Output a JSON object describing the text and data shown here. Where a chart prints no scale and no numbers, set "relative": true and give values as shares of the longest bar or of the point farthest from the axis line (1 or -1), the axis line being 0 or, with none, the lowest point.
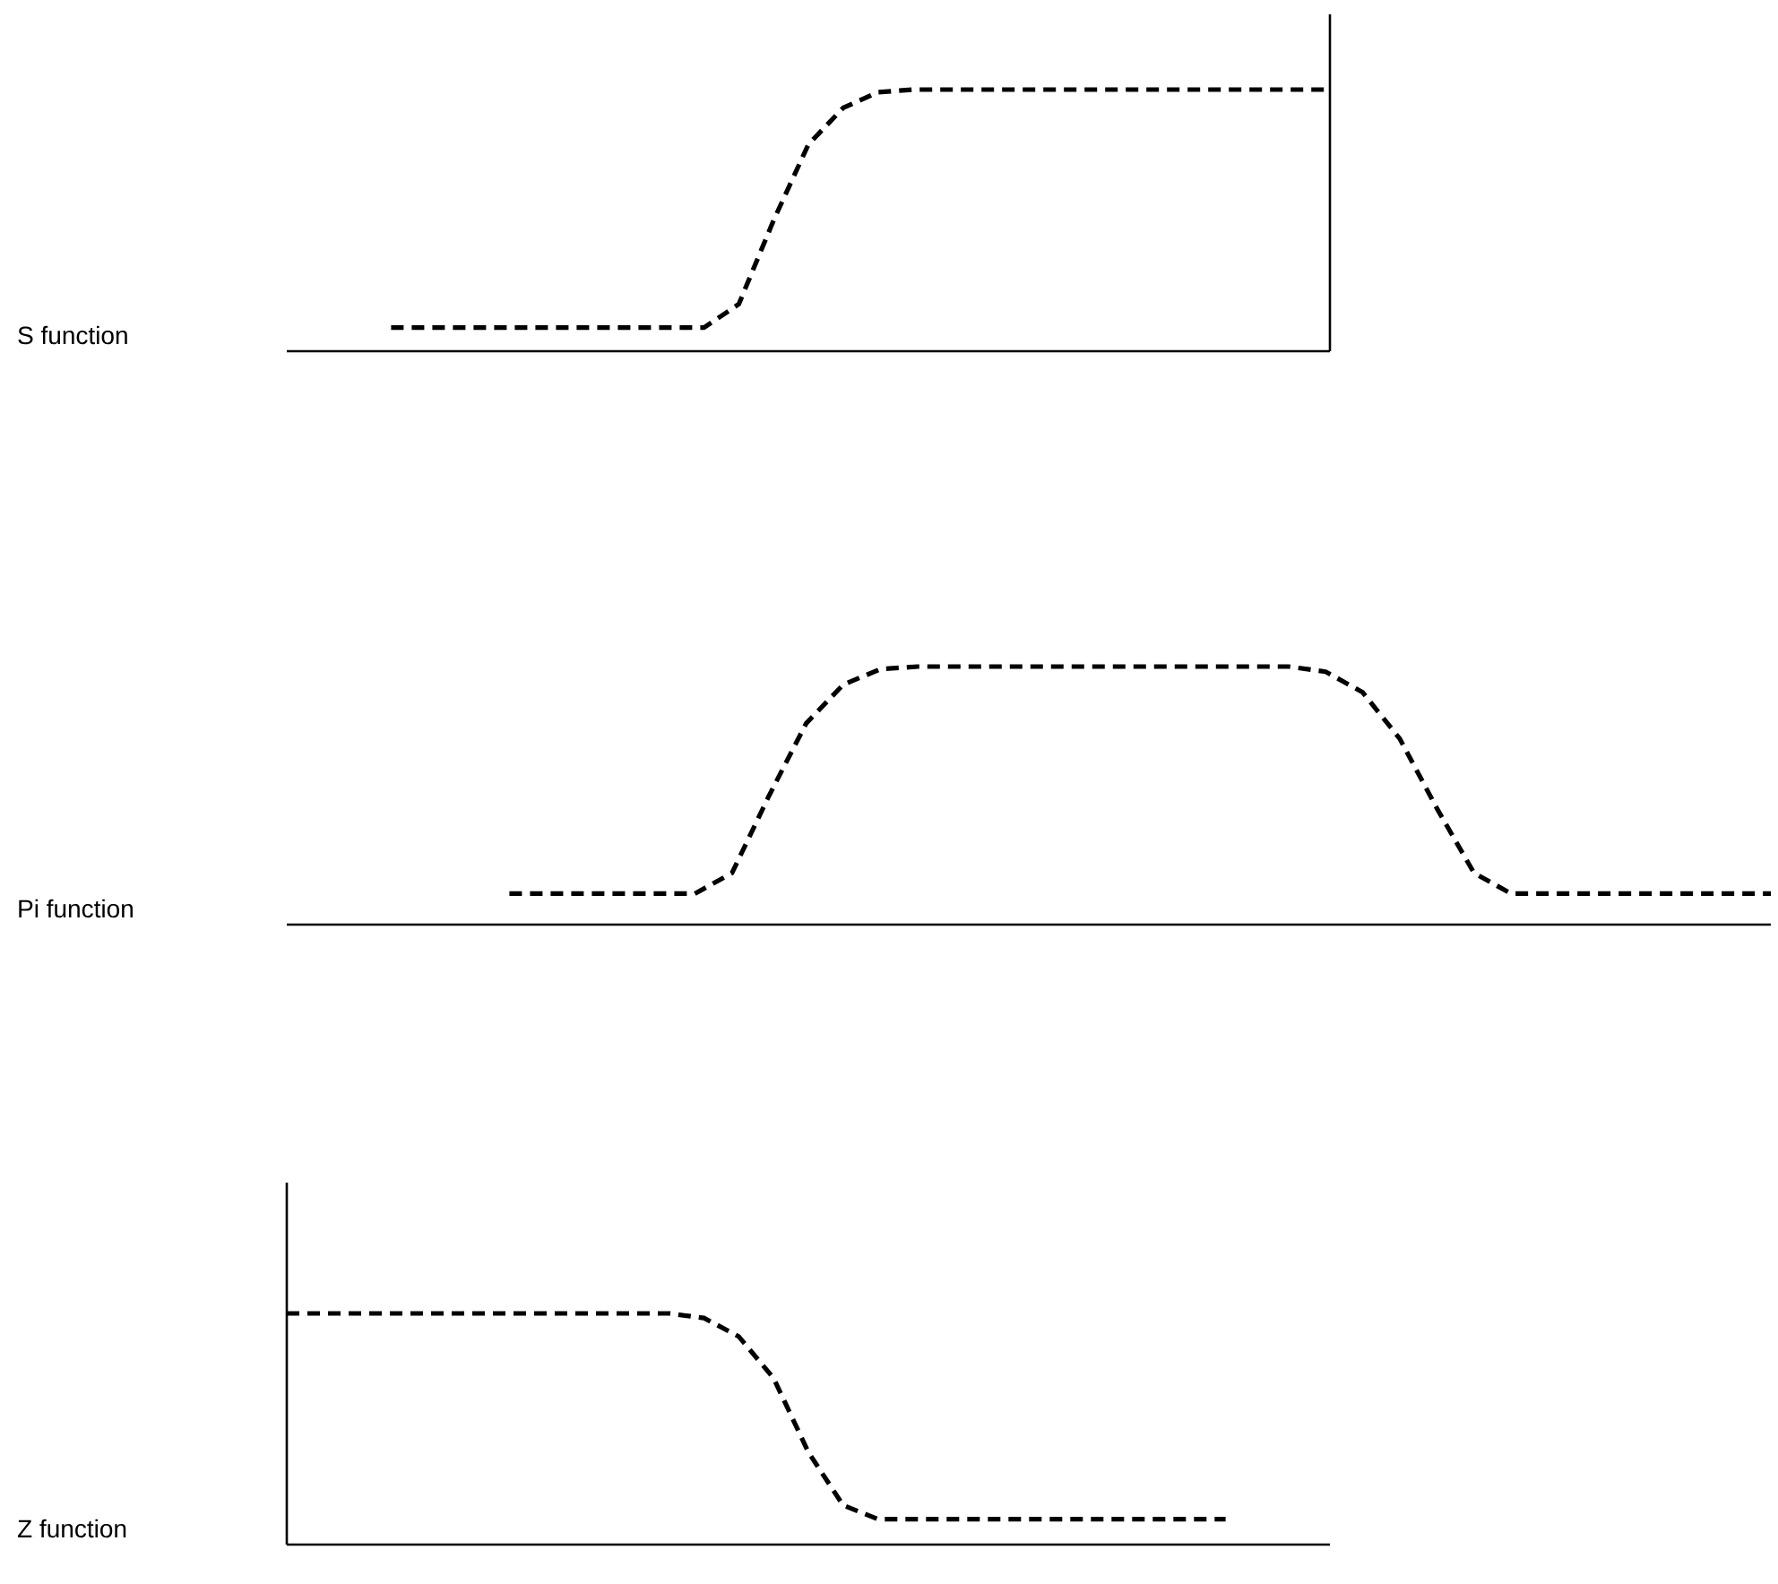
{
  "chart_data": [
    {
      "type": "line",
      "ylabel": "S function",
      "relative": true,
      "color": "#000000",
      "line_style": "dashed",
      "categories": [
        null,
        null,
        null,
        null,
        null,
        null,
        null,
        null,
        null,
        null,
        null,
        null,
        null,
        null,
        null,
        null,
        null,
        null,
        null,
        null,
        null,
        null,
        null,
        null,
        null,
        null,
        null,
        null,
        null,
        null,
        null
      ],
      "values": [
        null,
        null,
        null,
        0.09,
        0.09,
        0.09,
        0.09,
        0.09,
        0.09,
        0.09,
        0.09,
        0.09,
        0.09,
        0.18,
        0.5,
        0.79,
        0.93,
        0.99,
        1,
        1,
        1,
        1,
        1,
        1,
        1,
        1,
        1,
        1,
        1,
        1,
        1
      ]
    },
    {
      "type": "line",
      "ylabel": "Pi function",
      "relative": true,
      "color": "#000000",
      "line_style": "dashed",
      "categories": [
        null,
        null,
        null,
        null,
        null,
        null,
        null,
        null,
        null,
        null,
        null,
        null,
        null,
        null,
        null,
        null,
        null,
        null,
        null,
        null,
        null,
        null,
        null,
        null,
        null,
        null,
        null,
        null,
        null,
        null,
        null,
        null,
        null,
        null,
        null,
        null,
        null,
        null,
        null,
        null,
        null
      ],
      "values": [
        null,
        null,
        null,
        null,
        null,
        null,
        0.12,
        0.12,
        0.12,
        0.12,
        0.12,
        0.12,
        0.2,
        0.5,
        0.78,
        0.93,
        0.99,
        1,
        1,
        1,
        1,
        1,
        1,
        1,
        1,
        1,
        1,
        1,
        0.98,
        0.9,
        0.72,
        0.45,
        0.2,
        0.12,
        0.12,
        0.12,
        0.12,
        0.12,
        0.12,
        0.12,
        0.12
      ]
    },
    {
      "type": "line",
      "ylabel": "Z function",
      "relative": true,
      "color": "#000000",
      "line_style": "dashed",
      "categories": [
        null,
        null,
        null,
        null,
        null,
        null,
        null,
        null,
        null,
        null,
        null,
        null,
        null,
        null,
        null,
        null,
        null,
        null,
        null,
        null,
        null,
        null,
        null,
        null,
        null,
        null,
        null,
        null,
        null,
        null,
        null
      ],
      "values": [
        1,
        1,
        1,
        1,
        1,
        1,
        1,
        1,
        1,
        1,
        1,
        1,
        0.98,
        0.9,
        0.72,
        0.4,
        0.17,
        0.11,
        0.11,
        0.11,
        0.11,
        0.11,
        0.11,
        0.11,
        0.11,
        0.11,
        0.11,
        0.11,
        null,
        null,
        null
      ]
    }
  ]
}
